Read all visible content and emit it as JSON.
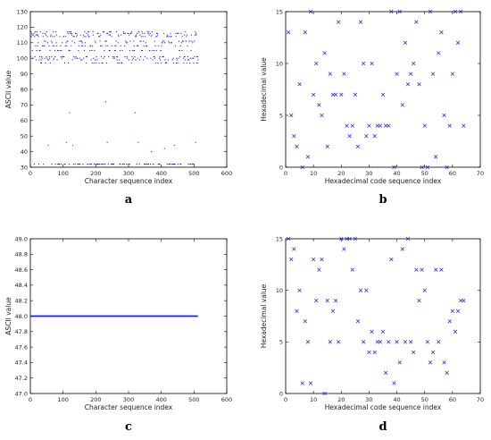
{
  "chart_data": [
    {
      "type": "scatter",
      "panel_label": "a",
      "xlabel": "Character sequence index",
      "ylabel": "ASCII value",
      "xlim": [
        0,
        600
      ],
      "ylim": [
        30,
        130
      ],
      "xticks": [
        0,
        100,
        200,
        300,
        400,
        500,
        600
      ],
      "yticks": [
        30,
        40,
        50,
        60,
        70,
        80,
        90,
        100,
        110,
        120,
        130
      ],
      "marker": "dot",
      "color": "#1a1aff",
      "n_points": 512,
      "dominant_levels": [
        32,
        97,
        99,
        100,
        101,
        105,
        108,
        110,
        111,
        114,
        115,
        116,
        117
      ],
      "outlier_points": [
        [
          10,
          120
        ],
        [
          55,
          44
        ],
        [
          110,
          46
        ],
        [
          120,
          65
        ],
        [
          130,
          44
        ],
        [
          230,
          72
        ],
        [
          235,
          46
        ],
        [
          320,
          65
        ],
        [
          330,
          46
        ],
        [
          370,
          40
        ],
        [
          410,
          42
        ],
        [
          440,
          44
        ],
        [
          505,
          46
        ]
      ]
    },
    {
      "type": "scatter",
      "panel_label": "b",
      "xlabel": "Hexadecimal code sequence index",
      "ylabel": "Hexadecimal value",
      "xlim": [
        0,
        70
      ],
      "ylim": [
        0,
        15
      ],
      "xticks": [
        0,
        10,
        20,
        30,
        40,
        50,
        60,
        70
      ],
      "yticks": [
        0,
        5,
        10,
        15
      ],
      "marker": "x",
      "color": "#1a1aff",
      "x": [
        1,
        2,
        3,
        4,
        5,
        6,
        7,
        8,
        9,
        10,
        11,
        12,
        13,
        14,
        15,
        16,
        17,
        18,
        19,
        20,
        21,
        22,
        23,
        24,
        25,
        26,
        27,
        28,
        29,
        30,
        31,
        32,
        33,
        34,
        35,
        36,
        37,
        38,
        39,
        40,
        41,
        42,
        43,
        44,
        45,
        46,
        47,
        48,
        49,
        50,
        51,
        52,
        53,
        54,
        55,
        56,
        57,
        58,
        59,
        60,
        61,
        62,
        63,
        64
      ],
      "y": [
        13,
        5,
        3,
        2,
        8,
        0,
        13,
        1,
        15,
        7,
        10,
        6,
        5,
        11,
        2,
        9,
        7,
        7,
        14,
        7,
        9,
        4,
        3,
        4,
        7,
        2,
        14,
        10,
        3,
        4,
        10,
        3,
        4,
        4,
        7,
        4,
        4,
        15,
        0,
        9,
        15,
        6,
        12,
        8,
        9,
        10,
        14,
        8,
        0,
        4,
        0,
        15,
        9,
        1,
        11,
        13,
        5,
        0,
        4,
        9,
        15,
        12,
        15,
        4
      ]
    },
    {
      "type": "line",
      "panel_label": "c",
      "xlabel": "Character sequence index",
      "ylabel": "ASCII value",
      "xlim": [
        0,
        600
      ],
      "ylim": [
        47,
        49
      ],
      "xticks": [
        0,
        100,
        200,
        300,
        400,
        500,
        600
      ],
      "yticks": [
        47,
        47.2,
        47.4,
        47.6,
        47.8,
        48,
        48.2,
        48.4,
        48.6,
        48.8,
        49
      ],
      "color": "#1a1aff",
      "series": [
        {
          "x": [
            1,
            512
          ],
          "y": [
            48,
            48
          ]
        }
      ]
    },
    {
      "type": "scatter",
      "panel_label": "d",
      "xlabel": "Hexadecimal code sequence index",
      "ylabel": "Hexadecimal value",
      "xlim": [
        0,
        70
      ],
      "ylim": [
        0,
        15
      ],
      "xticks": [
        0,
        10,
        20,
        30,
        40,
        50,
        60,
        70
      ],
      "yticks": [
        0,
        5,
        10,
        15
      ],
      "marker": "x",
      "color": "#1a1aff",
      "x": [
        1,
        2,
        3,
        4,
        5,
        6,
        7,
        8,
        9,
        10,
        11,
        12,
        13,
        14,
        15,
        16,
        17,
        18,
        19,
        20,
        21,
        22,
        23,
        24,
        25,
        26,
        27,
        28,
        29,
        30,
        31,
        32,
        33,
        34,
        35,
        36,
        37,
        38,
        39,
        40,
        41,
        42,
        43,
        44,
        45,
        46,
        47,
        48,
        49,
        50,
        51,
        52,
        53,
        54,
        55,
        56,
        57,
        58,
        59,
        60,
        61,
        62,
        63,
        64
      ],
      "y": [
        15,
        13,
        14,
        8,
        10,
        1,
        7,
        5,
        1,
        13,
        9,
        12,
        13,
        0,
        9,
        5,
        8,
        9,
        5,
        15,
        14,
        15,
        15,
        12,
        15,
        7,
        10,
        5,
        10,
        4,
        6,
        4,
        5,
        5,
        6,
        2,
        5,
        13,
        1,
        5,
        3,
        14,
        5,
        15,
        5,
        4,
        12,
        9,
        12,
        10,
        5,
        3,
        4,
        12,
        5,
        12,
        3,
        2,
        7,
        8,
        6,
        8,
        9,
        9
      ]
    }
  ]
}
